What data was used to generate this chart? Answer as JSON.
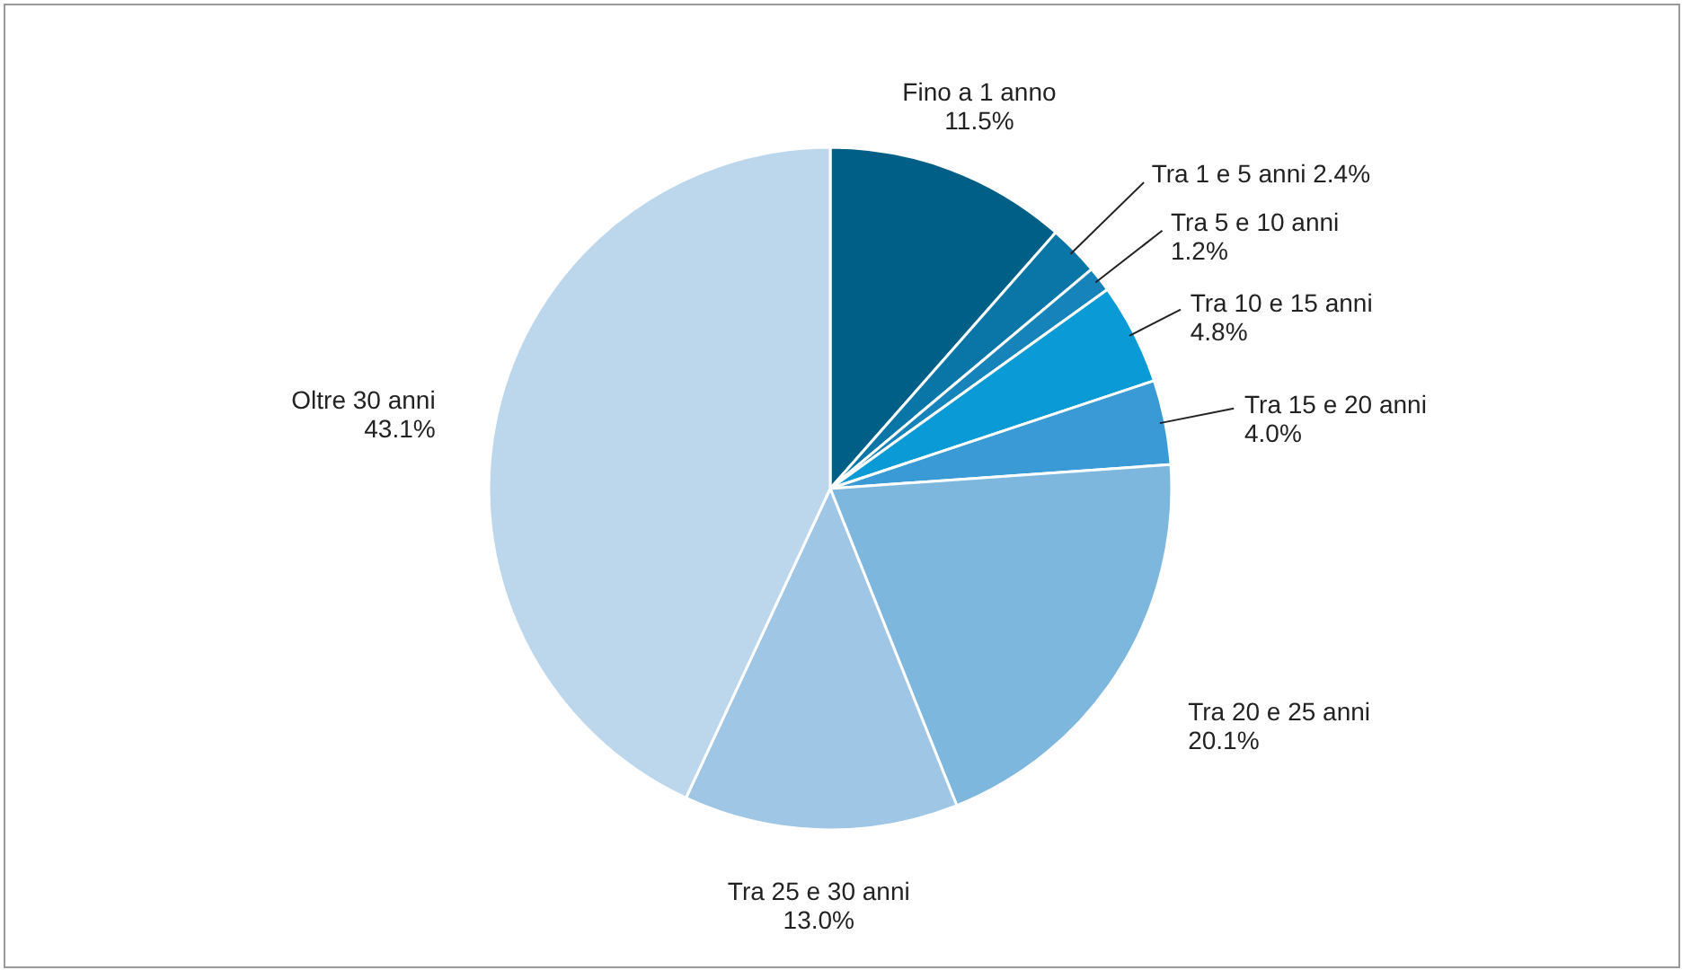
{
  "chart_data": {
    "type": "pie",
    "categories": [
      "Fino a 1 anno",
      "Tra 1 e 5 anni",
      "Tra 5 e 10 anni",
      "Tra 10 e 15 anni",
      "Tra 15 e 20 anni",
      "Tra 20 e 25 anni",
      "Tra 25 e 30 anni",
      "Oltre 30 anni"
    ],
    "values": [
      11.5,
      2.4,
      1.2,
      4.8,
      4.0,
      20.1,
      13.0,
      43.1
    ],
    "value_labels": [
      "11.5%",
      "2.4%",
      "1.2%",
      "4.8%",
      "4.0%",
      "20.1%",
      "13.0%",
      "43.1%"
    ],
    "colors": [
      "#005f87",
      "#0a76a8",
      "#1684bb",
      "#0a9bd6",
      "#3a9ad6",
      "#7db7de",
      "#9fc6e4",
      "#bcd7ec"
    ]
  }
}
